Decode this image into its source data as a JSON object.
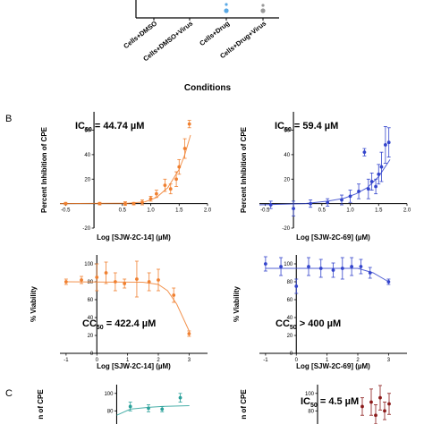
{
  "panel_letters": [
    "B",
    "C"
  ],
  "top_panel": {
    "categories": [
      "Cells+DMSO",
      "Cells+DMSO+Virus",
      "Cells+Drug",
      "Cells+Drug+Virus"
    ],
    "xlabel": "Conditions",
    "points": [
      {
        "category": "Cells+Drug",
        "color": "#5aa9e6"
      },
      {
        "category": "Cells+Drug+Virus",
        "color": "#999999"
      }
    ]
  },
  "chart_data": [
    {
      "id": "b1",
      "type": "scatter",
      "xlabel": "Log [SJW-2C-14] (µM)",
      "ylabel": "Percent Inhibition of CPE",
      "annotation": {
        "main": "IC",
        "sub": "50",
        "value": " = 44.74 µM"
      },
      "color": "#f08030",
      "xlim": [
        -0.6,
        2.0
      ],
      "ylim": [
        -20,
        75
      ],
      "xticks": [
        "-0.5",
        "0.5",
        "1.0",
        "1.5",
        "2.0"
      ],
      "xtick_values": [
        -0.5,
        0.5,
        1.0,
        1.5,
        2.0
      ],
      "yticks": [
        "-20",
        "20",
        "40",
        "60"
      ],
      "ytick_values": [
        -20,
        20,
        40,
        60
      ],
      "x": [
        -0.5,
        0.1,
        0.55,
        0.7,
        0.85,
        1.0,
        1.1,
        1.25,
        1.35,
        1.45,
        1.5,
        1.6,
        1.68
      ],
      "y": [
        0,
        0,
        0,
        0,
        1,
        4,
        8,
        15,
        12,
        20,
        30,
        45,
        65
      ],
      "err": [
        1,
        1,
        1.5,
        1,
        2,
        2,
        3,
        5,
        4,
        6,
        6,
        8,
        3
      ],
      "fit": [
        [
          -0.6,
          0
        ],
        [
          0.6,
          0.3
        ],
        [
          0.9,
          1.5
        ],
        [
          1.1,
          5
        ],
        [
          1.3,
          13
        ],
        [
          1.5,
          28
        ],
        [
          1.6,
          40
        ],
        [
          1.7,
          56
        ]
      ]
    },
    {
      "id": "b2",
      "type": "scatter",
      "xlabel": "Log [SJW-2C-69] (µM)",
      "ylabel": "Percent Inhibition of CPE",
      "annotation": {
        "main": "IC",
        "sub": "50",
        "value": " = 59.4 µM"
      },
      "color": "#3344cc",
      "xlim": [
        -0.6,
        2.0
      ],
      "ylim": [
        -20,
        75
      ],
      "xticks": [
        "-0.5",
        "0.5",
        "1.0",
        "1.5",
        "2.0"
      ],
      "xtick_values": [
        -0.5,
        0.5,
        1.0,
        1.5,
        2.0
      ],
      "yticks": [
        "-20",
        "20",
        "40",
        "60"
      ],
      "ytick_values": [
        -20,
        20,
        40,
        60
      ],
      "x": [
        -0.4,
        0.0,
        0.3,
        0.6,
        0.85,
        1.0,
        1.15,
        1.25,
        1.32,
        1.38,
        1.45,
        1.5,
        1.55,
        1.62,
        1.68
      ],
      "y": [
        -1,
        -4,
        0,
        1,
        3,
        6,
        10,
        42,
        12,
        18,
        14,
        24,
        30,
        48,
        50
      ],
      "err": [
        3,
        6,
        3,
        3,
        4,
        5,
        6,
        3,
        8,
        7,
        6,
        8,
        12,
        15,
        12
      ],
      "fit": [
        [
          -0.6,
          -1
        ],
        [
          0.2,
          0
        ],
        [
          0.6,
          2
        ],
        [
          0.9,
          4.5
        ],
        [
          1.1,
          8
        ],
        [
          1.3,
          13
        ],
        [
          1.5,
          22
        ],
        [
          1.7,
          36
        ]
      ]
    },
    {
      "id": "b3",
      "type": "scatter",
      "xlabel": "Log [SJW-2C-14] (µM)",
      "ylabel": "% Viability",
      "annotation": {
        "main": "CC",
        "sub": "50",
        "value": " = 422.4 µM"
      },
      "color": "#f08030",
      "xlim": [
        -1.2,
        3.6
      ],
      "ylim": [
        0,
        110
      ],
      "xticks": [
        "-1",
        "0",
        "1",
        "2",
        "3"
      ],
      "xtick_values": [
        -1,
        0,
        1,
        2,
        3
      ],
      "yticks": [
        "0",
        "20",
        "40",
        "60",
        "80",
        "100"
      ],
      "ytick_values": [
        0,
        20,
        40,
        60,
        80,
        100
      ],
      "x": [
        -1.0,
        -0.5,
        0.0,
        0.3,
        0.6,
        0.9,
        1.3,
        1.7,
        2.0,
        2.5,
        3.0
      ],
      "y": [
        80,
        82,
        85,
        90,
        80,
        78,
        83,
        80,
        82,
        65,
        22
      ],
      "err": [
        3,
        4,
        15,
        12,
        10,
        5,
        20,
        10,
        12,
        8,
        3
      ],
      "fit": [
        [
          -1.0,
          80
        ],
        [
          1.5,
          79.5
        ],
        [
          2.0,
          77
        ],
        [
          2.3,
          70
        ],
        [
          2.6,
          55
        ],
        [
          2.8,
          40
        ],
        [
          3.0,
          25
        ]
      ]
    },
    {
      "id": "b4",
      "type": "scatter",
      "xlabel": "Log [SJW-2C-69] (µM)",
      "ylabel": "% Viability",
      "annotation": {
        "main": "CC",
        "sub": "50",
        "value": " > 400 µM"
      },
      "color": "#3344cc",
      "xlim": [
        -1.2,
        3.6
      ],
      "ylim": [
        0,
        110
      ],
      "xticks": [
        "-1",
        "0",
        "1",
        "2",
        "3"
      ],
      "xtick_values": [
        -1,
        0,
        1,
        2,
        3
      ],
      "yticks": [
        "0",
        "20",
        "40",
        "60",
        "80",
        "100"
      ],
      "ytick_values": [
        0,
        20,
        40,
        60,
        80,
        100
      ],
      "x": [
        -1.0,
        -0.5,
        0.0,
        0.4,
        0.8,
        1.2,
        1.5,
        1.8,
        2.1,
        2.4,
        3.0
      ],
      "y": [
        100,
        97,
        75,
        97,
        95,
        93,
        95,
        97,
        97,
        90,
        80
      ],
      "err": [
        8,
        10,
        8,
        10,
        10,
        8,
        12,
        10,
        8,
        6,
        3
      ],
      "fit": [
        [
          -1.0,
          95
        ],
        [
          2.0,
          95
        ],
        [
          2.5,
          90
        ],
        [
          3.0,
          80
        ]
      ]
    },
    {
      "id": "c1",
      "type": "scatter",
      "ylabel": "n of CPE",
      "color": "#2aa19a",
      "xlim": [
        -0.6,
        2.0
      ],
      "ylim": [
        65,
        110
      ],
      "yticks": [
        "100",
        "80"
      ],
      "ytick_values": [
        100,
        80
      ],
      "x": [
        0.3,
        0.7,
        1.0,
        1.4
      ],
      "y": [
        85,
        83,
        82,
        95
      ],
      "err": [
        5,
        4,
        3,
        5
      ],
      "fit": [
        [
          0.0,
          75
        ],
        [
          0.3,
          82
        ],
        [
          0.7,
          84
        ],
        [
          1.0,
          85
        ],
        [
          1.6,
          86
        ]
      ]
    },
    {
      "id": "c2",
      "type": "scatter",
      "ylabel": "n of CPE",
      "annotation": {
        "main": "IC",
        "sub": "50",
        "value": " = 4.5 µM"
      },
      "color": "#8b1a1a",
      "xlim": [
        -0.6,
        2.0
      ],
      "ylim": [
        65,
        110
      ],
      "yticks": [
        "100",
        "80"
      ],
      "ytick_values": [
        100,
        80
      ],
      "x": [
        1.0,
        1.2,
        1.3,
        1.4,
        1.5,
        1.6
      ],
      "y": [
        85,
        90,
        75,
        95,
        80,
        88
      ],
      "err": [
        10,
        15,
        12,
        14,
        10,
        12
      ],
      "fit": []
    }
  ]
}
